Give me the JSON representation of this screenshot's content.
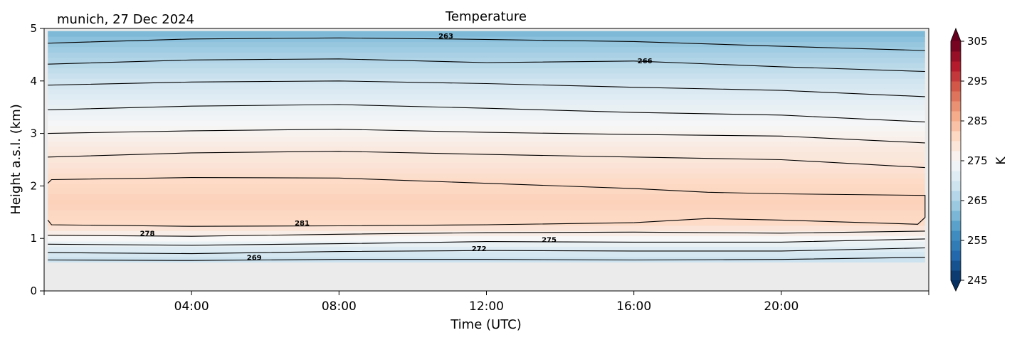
{
  "header": {
    "location_date": "munich, 27 Dec 2024",
    "title": "Temperature"
  },
  "chart_data": {
    "type": "heatmap",
    "title": "Temperature",
    "xlabel": "Time (UTC)",
    "ylabel": "Height a.s.l. (km)",
    "xlim_hours": [
      0,
      24
    ],
    "ylim": [
      0,
      5
    ],
    "x_ticks": [
      {
        "hour": 4,
        "label": "04:00"
      },
      {
        "hour": 8,
        "label": "08:00"
      },
      {
        "hour": 12,
        "label": "12:00"
      },
      {
        "hour": 16,
        "label": "16:00"
      },
      {
        "hour": 20,
        "label": "20:00"
      }
    ],
    "y_ticks": [
      {
        "value": 0,
        "label": "0"
      },
      {
        "value": 1,
        "label": "1"
      },
      {
        "value": 2,
        "label": "2"
      },
      {
        "value": 3,
        "label": "3"
      },
      {
        "value": 4,
        "label": "4"
      },
      {
        "value": 5,
        "label": "5"
      }
    ],
    "data_height_range_km": [
      0.55,
      4.95
    ],
    "missing_data_color": "#ebebeb",
    "colorbar": {
      "label": "K",
      "colormap": "RdBu_r",
      "range": [
        245,
        305
      ],
      "extend": "both",
      "ticks": [
        {
          "value": 245,
          "label": "245"
        },
        {
          "value": 255,
          "label": "255"
        },
        {
          "value": 265,
          "label": "265"
        },
        {
          "value": 275,
          "label": "275"
        },
        {
          "value": 285,
          "label": "285"
        },
        {
          "value": 295,
          "label": "295"
        },
        {
          "value": 305,
          "label": "305"
        }
      ]
    },
    "temperature_profile": [
      {
        "height_km": 0.55,
        "K": 268
      },
      {
        "height_km": 0.65,
        "K": 269
      },
      {
        "height_km": 0.8,
        "K": 271
      },
      {
        "height_km": 0.95,
        "K": 274
      },
      {
        "height_km": 1.1,
        "K": 277
      },
      {
        "height_km": 1.3,
        "K": 281
      },
      {
        "height_km": 1.7,
        "K": 282
      },
      {
        "height_km": 2.1,
        "K": 281
      },
      {
        "height_km": 2.4,
        "K": 279
      },
      {
        "height_km": 2.7,
        "K": 278
      },
      {
        "height_km": 3.0,
        "K": 276
      },
      {
        "height_km": 3.3,
        "K": 274
      },
      {
        "height_km": 3.6,
        "K": 272
      },
      {
        "height_km": 4.0,
        "K": 269
      },
      {
        "height_km": 4.4,
        "K": 266
      },
      {
        "height_km": 4.75,
        "K": 263
      },
      {
        "height_km": 4.95,
        "K": 261
      }
    ],
    "contours": [
      {
        "level": 269,
        "points": [
          [
            0.1,
            0.59
          ],
          [
            4.0,
            0.58
          ],
          [
            8.0,
            0.6
          ],
          [
            12.0,
            0.6
          ],
          [
            16.0,
            0.59
          ],
          [
            20.0,
            0.6
          ],
          [
            23.9,
            0.64
          ]
        ]
      },
      {
        "level": 272,
        "points": [
          [
            0.1,
            0.73
          ],
          [
            4.0,
            0.71
          ],
          [
            8.0,
            0.75
          ],
          [
            12.0,
            0.77
          ],
          [
            16.0,
            0.76
          ],
          [
            20.0,
            0.76
          ],
          [
            23.9,
            0.82
          ]
        ]
      },
      {
        "level": 275,
        "points": [
          [
            0.1,
            0.89
          ],
          [
            4.0,
            0.87
          ],
          [
            8.0,
            0.9
          ],
          [
            12.0,
            0.94
          ],
          [
            16.0,
            0.93
          ],
          [
            20.0,
            0.93
          ],
          [
            23.9,
            0.99
          ]
        ]
      },
      {
        "level": 278,
        "points": [
          [
            0.1,
            1.06
          ],
          [
            4.0,
            1.04
          ],
          [
            8.0,
            1.08
          ],
          [
            12.0,
            1.11
          ],
          [
            16.0,
            1.12
          ],
          [
            20.0,
            1.1
          ],
          [
            23.9,
            1.14
          ]
        ]
      },
      {
        "level": 281,
        "points": [
          [
            0.1,
            1.35
          ],
          [
            0.2,
            1.26
          ],
          [
            4.0,
            1.23
          ],
          [
            8.0,
            1.24
          ],
          [
            12.0,
            1.26
          ],
          [
            16.0,
            1.3
          ],
          [
            18.0,
            1.38
          ],
          [
            20.0,
            1.35
          ],
          [
            23.7,
            1.27
          ],
          [
            23.9,
            1.4
          ],
          [
            23.9,
            1.82
          ],
          [
            20.0,
            1.85
          ],
          [
            18.0,
            1.88
          ],
          [
            16.0,
            1.95
          ],
          [
            12.0,
            2.05
          ],
          [
            8.0,
            2.15
          ],
          [
            4.0,
            2.16
          ],
          [
            0.2,
            2.12
          ],
          [
            0.1,
            2.05
          ]
        ]
      },
      {
        "level": 278,
        "points": [
          [
            0.1,
            2.55
          ],
          [
            4.0,
            2.63
          ],
          [
            8.0,
            2.66
          ],
          [
            12.0,
            2.6
          ],
          [
            16.0,
            2.55
          ],
          [
            20.0,
            2.5
          ],
          [
            23.9,
            2.35
          ]
        ]
      },
      {
        "level": 276,
        "points": [
          [
            0.1,
            3.0
          ],
          [
            4.0,
            3.05
          ],
          [
            8.0,
            3.08
          ],
          [
            12.0,
            3.02
          ],
          [
            16.0,
            2.98
          ],
          [
            20.0,
            2.95
          ],
          [
            23.9,
            2.82
          ]
        ]
      },
      {
        "level": 274,
        "points": [
          [
            0.1,
            3.45
          ],
          [
            4.0,
            3.52
          ],
          [
            8.0,
            3.55
          ],
          [
            12.0,
            3.48
          ],
          [
            16.0,
            3.4
          ],
          [
            20.0,
            3.35
          ],
          [
            23.9,
            3.22
          ]
        ]
      },
      {
        "level": 271,
        "points": [
          [
            0.1,
            3.92
          ],
          [
            4.0,
            3.98
          ],
          [
            8.0,
            4.0
          ],
          [
            12.0,
            3.95
          ],
          [
            16.0,
            3.88
          ],
          [
            20.0,
            3.82
          ],
          [
            23.9,
            3.7
          ]
        ]
      },
      {
        "level": 266,
        "points": [
          [
            0.1,
            4.32
          ],
          [
            4.0,
            4.4
          ],
          [
            8.0,
            4.42
          ],
          [
            12.0,
            4.35
          ],
          [
            16.0,
            4.38
          ],
          [
            20.0,
            4.27
          ],
          [
            23.9,
            4.18
          ]
        ]
      },
      {
        "level": 263,
        "points": [
          [
            0.1,
            4.72
          ],
          [
            4.0,
            4.8
          ],
          [
            8.0,
            4.82
          ],
          [
            11.0,
            4.8
          ],
          [
            16.0,
            4.75
          ],
          [
            20.0,
            4.66
          ],
          [
            23.9,
            4.58
          ]
        ]
      }
    ],
    "contour_labels": [
      {
        "text": "263",
        "hour": 10.9,
        "height_km": 4.85
      },
      {
        "text": "266",
        "hour": 16.3,
        "height_km": 4.38
      },
      {
        "text": "281",
        "hour": 7.0,
        "height_km": 1.29
      },
      {
        "text": "278",
        "hour": 2.8,
        "height_km": 1.09
      },
      {
        "text": "275",
        "hour": 13.7,
        "height_km": 0.97
      },
      {
        "text": "272",
        "hour": 11.8,
        "height_km": 0.8
      },
      {
        "text": "269",
        "hour": 5.7,
        "height_km": 0.63
      }
    ]
  }
}
